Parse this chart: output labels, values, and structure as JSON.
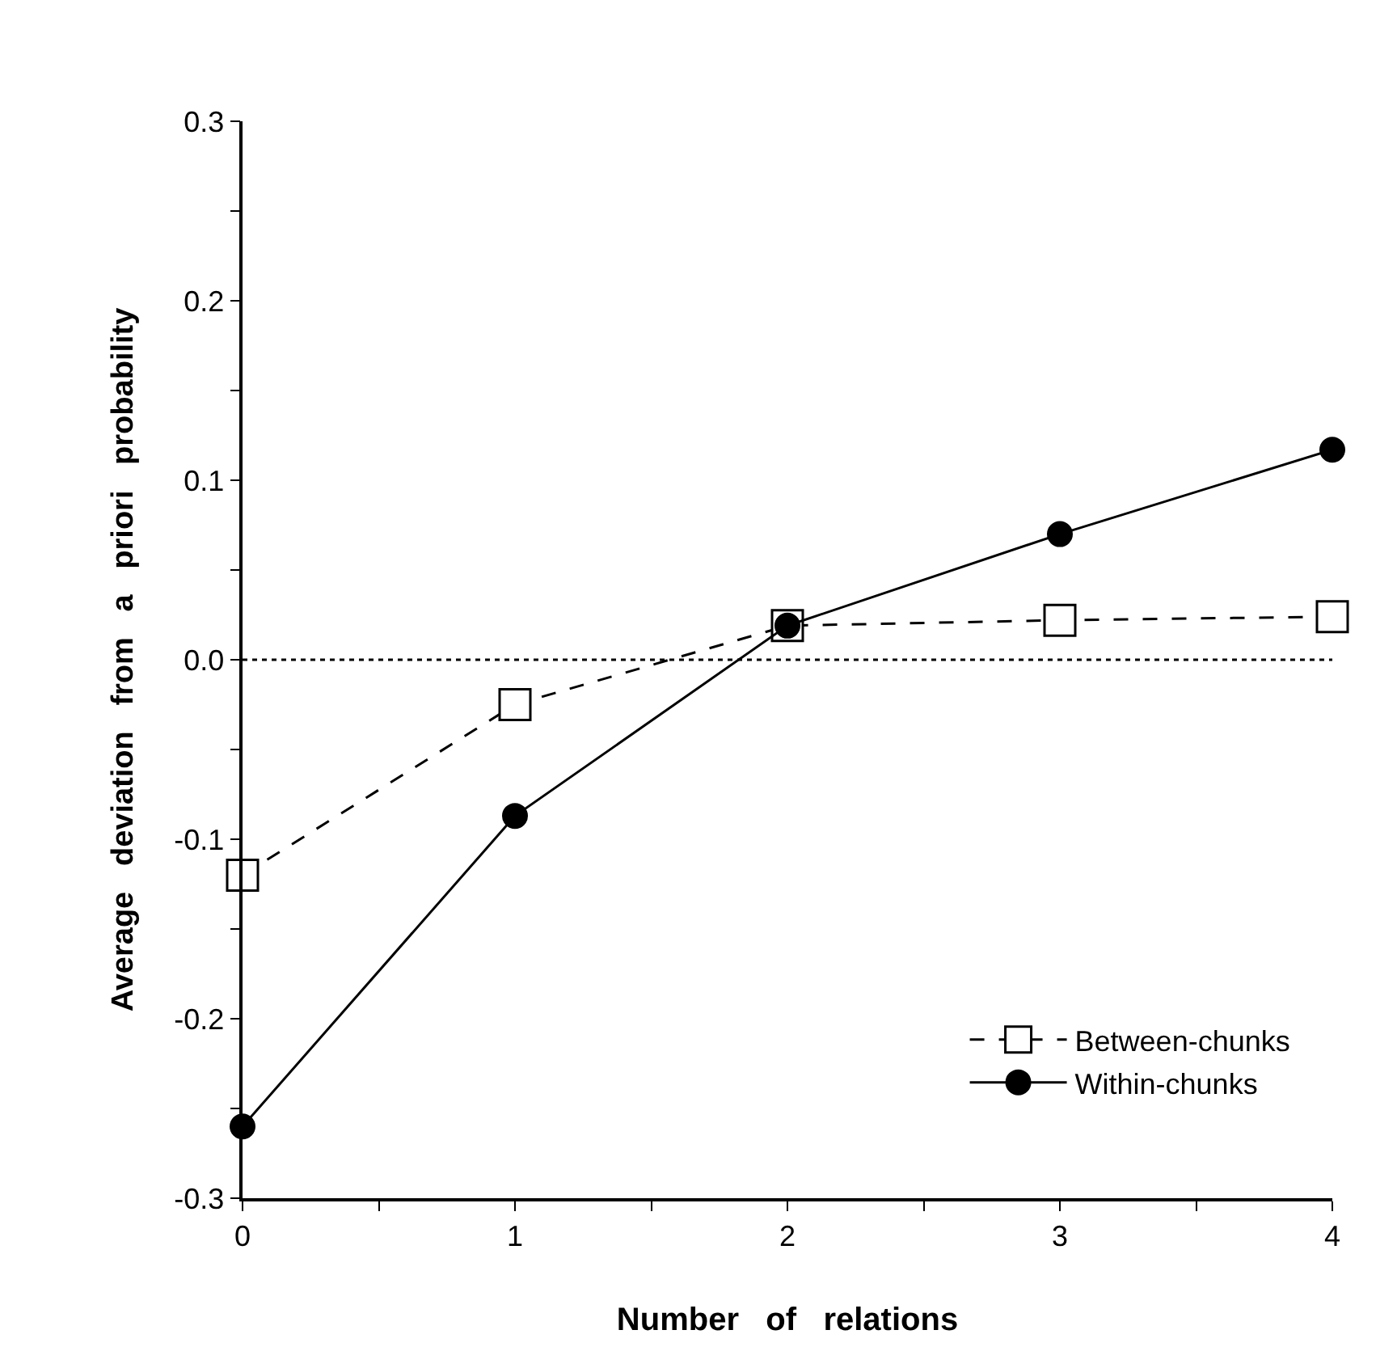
{
  "chart_data": {
    "type": "line",
    "xlabel": "Number   of   relations",
    "ylabel": "Average   deviation   from   a   priori   probability",
    "x": [
      0,
      1,
      2,
      3,
      4
    ],
    "series": [
      {
        "name": "Between-chunks",
        "color": "#000000",
        "marker": "square",
        "line_style": "dashed",
        "values": [
          -0.12,
          -0.025,
          0.019,
          0.022,
          0.024
        ]
      },
      {
        "name": "Within-chunks",
        "color": "#000000",
        "marker": "circle",
        "line_style": "solid",
        "values": [
          -0.26,
          -0.087,
          0.019,
          0.07,
          0.117
        ]
      }
    ],
    "xlim": [
      0,
      4
    ],
    "xticks": [
      0,
      {
        "value": 0.5,
        "label": null
      },
      1,
      {
        "value": 1.5,
        "label": null
      },
      2,
      {
        "value": 2.5,
        "label": null
      },
      3,
      {
        "value": 3.5,
        "label": null
      },
      4
    ],
    "ylim": [
      -0.3,
      0.3
    ],
    "yticks": [
      -0.3,
      {
        "value": -0.25,
        "label": null
      },
      -0.2,
      {
        "value": -0.15,
        "label": null
      },
      -0.1,
      {
        "value": -0.05,
        "label": null
      },
      {
        "value": 0,
        "label": "0.0"
      },
      {
        "value": 0.05,
        "label": null
      },
      0.1,
      {
        "value": 0.15,
        "label": null
      },
      0.2,
      {
        "value": 0.25,
        "label": null
      },
      0.3
    ],
    "ref_lines": [
      {
        "axis": "y",
        "value": 0,
        "line_style": "dotted",
        "color": "#000000"
      }
    ],
    "grid": false,
    "legend": "bottom right"
  }
}
